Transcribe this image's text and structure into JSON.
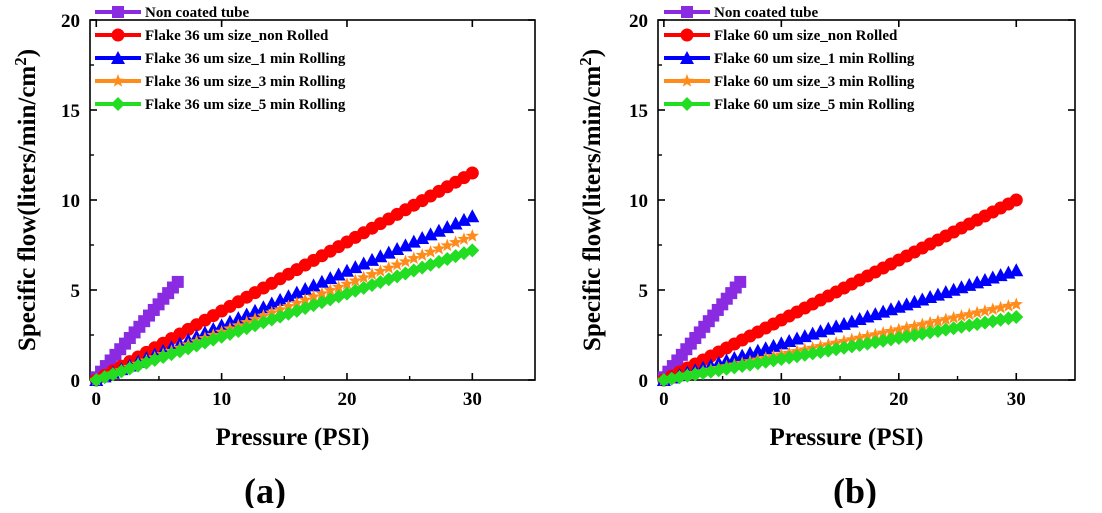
{
  "figure": {
    "panels": [
      {
        "panel_label": "(a)",
        "colors": {
          "axis": "#000000"
        }
      },
      {
        "panel_label": "(b)",
        "colors": {
          "axis": "#000000"
        }
      }
    ]
  },
  "chart_data": [
    {
      "type": "scatter",
      "xlabel": "Pressure (PSI)",
      "ylabel_main": "Specific flow(liters/min/cm",
      "ylabel_sup": "2",
      "ylabel_close": ")",
      "xlim": [
        -0.5,
        35
      ],
      "ylim": [
        0,
        20
      ],
      "xticks": [
        0,
        10,
        20,
        30
      ],
      "yticks": [
        0,
        5,
        10,
        15,
        20
      ],
      "grid": false,
      "legend_position": "top-left",
      "series": [
        {
          "name": "Non coated tube",
          "color": "#8a2be2",
          "marker": "square",
          "x_start": 0,
          "x_end": 6.5,
          "y_start": 0.15,
          "y_end": 5.45,
          "points": 18
        },
        {
          "name": "Flake 36 um size_non Rolled",
          "color": "#ff0000",
          "marker": "circle",
          "x_start": 0,
          "x_end": 30,
          "y_start": 0,
          "y_end": 11.5,
          "points": 46
        },
        {
          "name": "Flake 36 um size_1 min Rolling",
          "color": "#0000ff",
          "marker": "triangle",
          "x_start": 0,
          "x_end": 30,
          "y_start": 0,
          "y_end": 9.1,
          "points": 46
        },
        {
          "name": "Flake 36 um size_3 min Rolling",
          "color": "#ff8c1a",
          "marker": "star",
          "x_start": 0,
          "x_end": 30,
          "y_start": 0,
          "y_end": 8.0,
          "points": 46
        },
        {
          "name": "Flake 36 um size_5 min Rolling",
          "color": "#22dd22",
          "marker": "diamond",
          "x_start": 0,
          "x_end": 30,
          "y_start": 0,
          "y_end": 7.2,
          "points": 46
        }
      ]
    },
    {
      "type": "scatter",
      "xlabel": "Pressure (PSI)",
      "ylabel_main": "Specific flow(liters/min/cm",
      "ylabel_sup": "2",
      "ylabel_close": ")",
      "xlim": [
        -0.5,
        35
      ],
      "ylim": [
        0,
        20
      ],
      "xticks": [
        0,
        10,
        20,
        30
      ],
      "yticks": [
        0,
        5,
        10,
        15,
        20
      ],
      "grid": false,
      "legend_position": "top-left",
      "series": [
        {
          "name": "Non coated tube",
          "color": "#8a2be2",
          "marker": "square",
          "x_start": 0,
          "x_end": 6.5,
          "y_start": 0.15,
          "y_end": 5.45,
          "points": 18
        },
        {
          "name": "Flake 60 um size_non Rolled",
          "color": "#ff0000",
          "marker": "circle",
          "x_start": 0,
          "x_end": 30,
          "y_start": 0,
          "y_end": 10.0,
          "points": 46
        },
        {
          "name": "Flake 60 um size_1 min Rolling",
          "color": "#0000ff",
          "marker": "triangle",
          "x_start": 0,
          "x_end": 30,
          "y_start": 0,
          "y_end": 6.1,
          "points": 46
        },
        {
          "name": "Flake 60 um size_3 min Rolling",
          "color": "#ff8c1a",
          "marker": "star",
          "x_start": 0,
          "x_end": 30,
          "y_start": 0,
          "y_end": 4.2,
          "points": 46
        },
        {
          "name": "Flake 60 um size_5 min Rolling",
          "color": "#22dd22",
          "marker": "diamond",
          "x_start": 0,
          "x_end": 30,
          "y_start": 0,
          "y_end": 3.5,
          "points": 46
        }
      ]
    }
  ]
}
